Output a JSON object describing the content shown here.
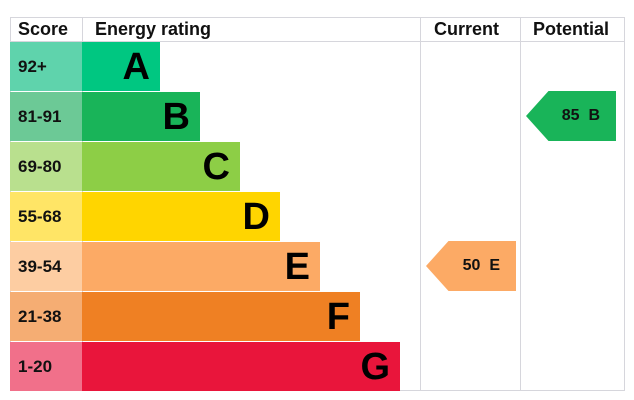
{
  "chart_data": {
    "type": "table",
    "headers": {
      "score": "Score",
      "rating": "Energy rating",
      "current": "Current",
      "potential": "Potential"
    },
    "bands": [
      {
        "letter": "A",
        "range": "92+",
        "color": "#00c781",
        "tint": "#5fd3ac"
      },
      {
        "letter": "B",
        "range": "81-91",
        "color": "#19b459",
        "tint": "#6cc996"
      },
      {
        "letter": "C",
        "range": "69-80",
        "color": "#8dce46",
        "tint": "#b9e08e"
      },
      {
        "letter": "D",
        "range": "55-68",
        "color": "#ffd500",
        "tint": "#ffe566"
      },
      {
        "letter": "E",
        "range": "39-54",
        "color": "#fcaa65",
        "tint": "#fdcda2"
      },
      {
        "letter": "F",
        "range": "21-38",
        "color": "#ef8023",
        "tint": "#f5ad73"
      },
      {
        "letter": "G",
        "range": "1-20",
        "color": "#e9153b",
        "tint": "#f1708a"
      }
    ],
    "current": {
      "value": 50,
      "letter": "E",
      "label": "50  E",
      "color": "#fcaa65"
    },
    "potential": {
      "value": 85,
      "letter": "B",
      "label": "85  B",
      "color": "#19b459"
    }
  }
}
